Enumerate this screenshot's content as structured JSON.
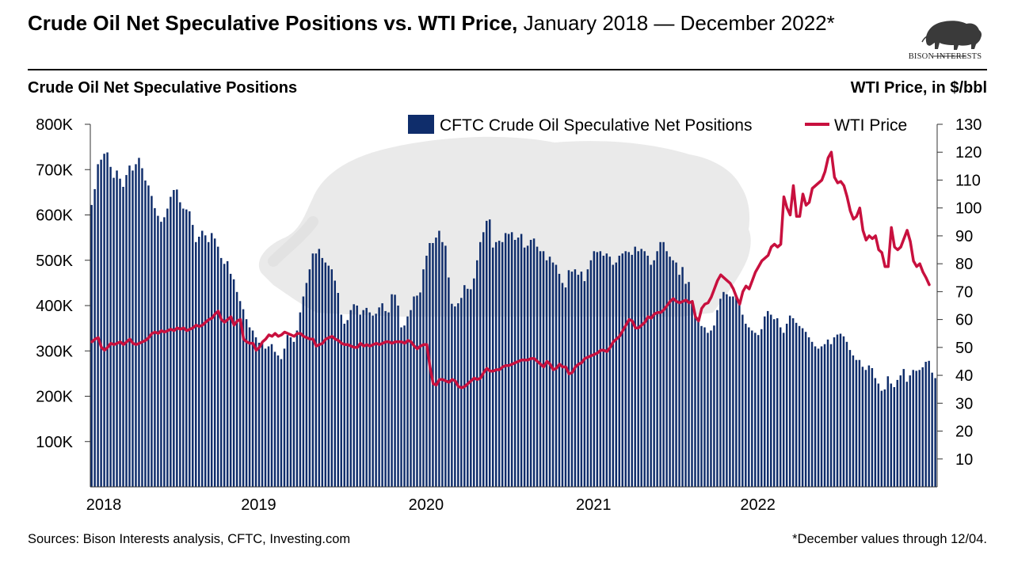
{
  "header": {
    "title_bold": "Crude Oil Net Speculative Positions vs. WTI Price,",
    "title_regular": " January 2018 — December 2022*",
    "logo_text": "BISON INTERESTS",
    "logo_icon": "bison-icon"
  },
  "footer": {
    "sources": "Sources: Bison Interests analysis, CFTC, Investing.com",
    "note": "*December values through 12/04."
  },
  "colors": {
    "bars": "#0f2d6b",
    "line": "#c8103e",
    "watermark": "#e6e6e6"
  },
  "chart_data": {
    "type": "bar+line",
    "title": "Crude Oil Net Speculative Positions vs. WTI Price, January 2018 — December 2022*",
    "xlabel": "",
    "ylabel_left": "Crude Oil Net Speculative Positions",
    "ylabel_right": "WTI Price, in $/bbl",
    "frequency": "weekly",
    "x_tick_labels": [
      "2018",
      "2019",
      "2020",
      "2021",
      "2022"
    ],
    "x_tick_index": [
      0,
      49,
      102,
      155,
      207
    ],
    "y_left": {
      "range": [
        0,
        800000
      ],
      "ticks": [
        100000,
        200000,
        300000,
        400000,
        500000,
        600000,
        700000,
        800000
      ],
      "tick_labels": [
        "100K",
        "200K",
        "300K",
        "400K",
        "500K",
        "600K",
        "700K",
        "800K"
      ]
    },
    "y_right": {
      "range": [
        0,
        130
      ],
      "ticks": [
        10,
        20,
        30,
        40,
        50,
        60,
        70,
        80,
        90,
        100,
        110,
        120,
        130
      ],
      "tick_labels": [
        "10",
        "20",
        "30",
        "40",
        "50",
        "60",
        "70",
        "80",
        "90",
        "100",
        "110",
        "120",
        "130"
      ]
    },
    "legend": {
      "placement": "top-right",
      "entries": [
        "CFTC Crude Oil Speculative Net Positions",
        "WTI Price"
      ]
    },
    "grid": false,
    "series": [
      {
        "name": "CFTC Crude Oil Speculative Net Positions",
        "axis": "left",
        "kind": "bar",
        "unit": "thousand contracts",
        "values": [
          622,
          657,
          712,
          722,
          735,
          738,
          706,
          682,
          698,
          680,
          662,
          688,
          709,
          698,
          712,
          726,
          703,
          676,
          665,
          642,
          615,
          598,
          585,
          595,
          614,
          640,
          655,
          656,
          628,
          614,
          612,
          608,
          578,
          540,
          552,
          565,
          555,
          540,
          560,
          548,
          530,
          505,
          492,
          498,
          470,
          458,
          430,
          410,
          392,
          370,
          352,
          345,
          330,
          318,
          320,
          305,
          310,
          315,
          298,
          290,
          282,
          305,
          335,
          330,
          320,
          345,
          385,
          420,
          450,
          480,
          515,
          515,
          525,
          505,
          495,
          488,
          480,
          455,
          428,
          380,
          360,
          368,
          390,
          403,
          400,
          380,
          390,
          395,
          385,
          378,
          382,
          396,
          405,
          388,
          385,
          425,
          424,
          400,
          352,
          356,
          376,
          390,
          420,
          422,
          429,
          480,
          510,
          538,
          538,
          550,
          565,
          540,
          532,
          462,
          404,
          398,
          405,
          417,
          445,
          437,
          436,
          460,
          500,
          540,
          562,
          587,
          590,
          528,
          540,
          543,
          540,
          560,
          558,
          562,
          545,
          550,
          558,
          528,
          532,
          545,
          548,
          530,
          520,
          520,
          500,
          508,
          495,
          490,
          470,
          450,
          440,
          478,
          475,
          480,
          468,
          475,
          454,
          480,
          500,
          520,
          518,
          520,
          510,
          515,
          508,
          490,
          495,
          510,
          515,
          520,
          518,
          512,
          530,
          520,
          525,
          520,
          510,
          490,
          500,
          520,
          540,
          540,
          520,
          508,
          500,
          495,
          468,
          485,
          448,
          452,
          405,
          378,
          368,
          355,
          352,
          340,
          345,
          356,
          390,
          415,
          430,
          425,
          420,
          420,
          418,
          402,
          380,
          360,
          352,
          345,
          340,
          335,
          348,
          376,
          388,
          380,
          370,
          372,
          352,
          340,
          360,
          378,
          372,
          362,
          355,
          350,
          342,
          330,
          320,
          310,
          305,
          310,
          315,
          325,
          315,
          330,
          336,
          338,
          332,
          320,
          302,
          290,
          280,
          280,
          265,
          258,
          268,
          262,
          240,
          228,
          212,
          215,
          244,
          228,
          220,
          236,
          246,
          260,
          232,
          246,
          258,
          256,
          258,
          264,
          276,
          278,
          252,
          240
        ]
      },
      {
        "name": "WTI Price",
        "axis": "right",
        "kind": "line",
        "unit": "$/bbl",
        "values": [
          52,
          53,
          53.5,
          50,
          49,
          50,
          51.5,
          51,
          51.5,
          52,
          51,
          52,
          53,
          51.5,
          51,
          51.5,
          52,
          52.5,
          53.5,
          55,
          55.5,
          55,
          56,
          55.5,
          56,
          56.5,
          56,
          57,
          56.5,
          57,
          56,
          56.5,
          57,
          58,
          57.5,
          58,
          59,
          60,
          60.5,
          62,
          63,
          60,
          59,
          60,
          61,
          58,
          59.5,
          60,
          53,
          52,
          51.5,
          51.5,
          49,
          50,
          52,
          53,
          54.5,
          54,
          55,
          54,
          54.5,
          55.5,
          55,
          54.5,
          54,
          55,
          55,
          54,
          53.5,
          53,
          53,
          50.5,
          51,
          51.5,
          53,
          53.5,
          54,
          53,
          52.5,
          51.5,
          51,
          51,
          50.5,
          50,
          50,
          51.5,
          50.5,
          51,
          50.5,
          51,
          51.5,
          51,
          51.5,
          52,
          52,
          51.5,
          52,
          52,
          52,
          51.5,
          52.5,
          52,
          50.5,
          49.5,
          50.5,
          51,
          51,
          43,
          37,
          36.5,
          38.5,
          38.5,
          38,
          37.5,
          38.5,
          38,
          36,
          35.5,
          36,
          37,
          38,
          39,
          38.5,
          39,
          41,
          42.5,
          41.5,
          41.5,
          42,
          42,
          43,
          43.5,
          43.5,
          44,
          44.5,
          45,
          45.5,
          45.5,
          45.5,
          46,
          46,
          45,
          44,
          43,
          45,
          44,
          42,
          42.5,
          44,
          43,
          43,
          40.5,
          41,
          43,
          44,
          44.5,
          46,
          46.5,
          47,
          47.5,
          48,
          49,
          49,
          48.5,
          50,
          52,
          53,
          54,
          56,
          58,
          60,
          59.5,
          57,
          57,
          58,
          59,
          61,
          60.5,
          62,
          62.5,
          62.5,
          63.5,
          65,
          66.5,
          67.5,
          66.5,
          66,
          66.5,
          67,
          66,
          66.5,
          61,
          59.5,
          64,
          65.5,
          66,
          68,
          71,
          74,
          76,
          75,
          74,
          73,
          71,
          68,
          65.5,
          70,
          72,
          71,
          74,
          77,
          79,
          81,
          82,
          83,
          86,
          87,
          86,
          87,
          104,
          100,
          97.5,
          108,
          97,
          97,
          105,
          101,
          102,
          107,
          108,
          109,
          110,
          113,
          118,
          120,
          111,
          109,
          109.5,
          108,
          104,
          99,
          96,
          97,
          100,
          92,
          88.5,
          90,
          89,
          90,
          85,
          84,
          79,
          79,
          93,
          86,
          85,
          86,
          89,
          92,
          88,
          81,
          79,
          80,
          77,
          75,
          72.5
        ]
      }
    ]
  }
}
